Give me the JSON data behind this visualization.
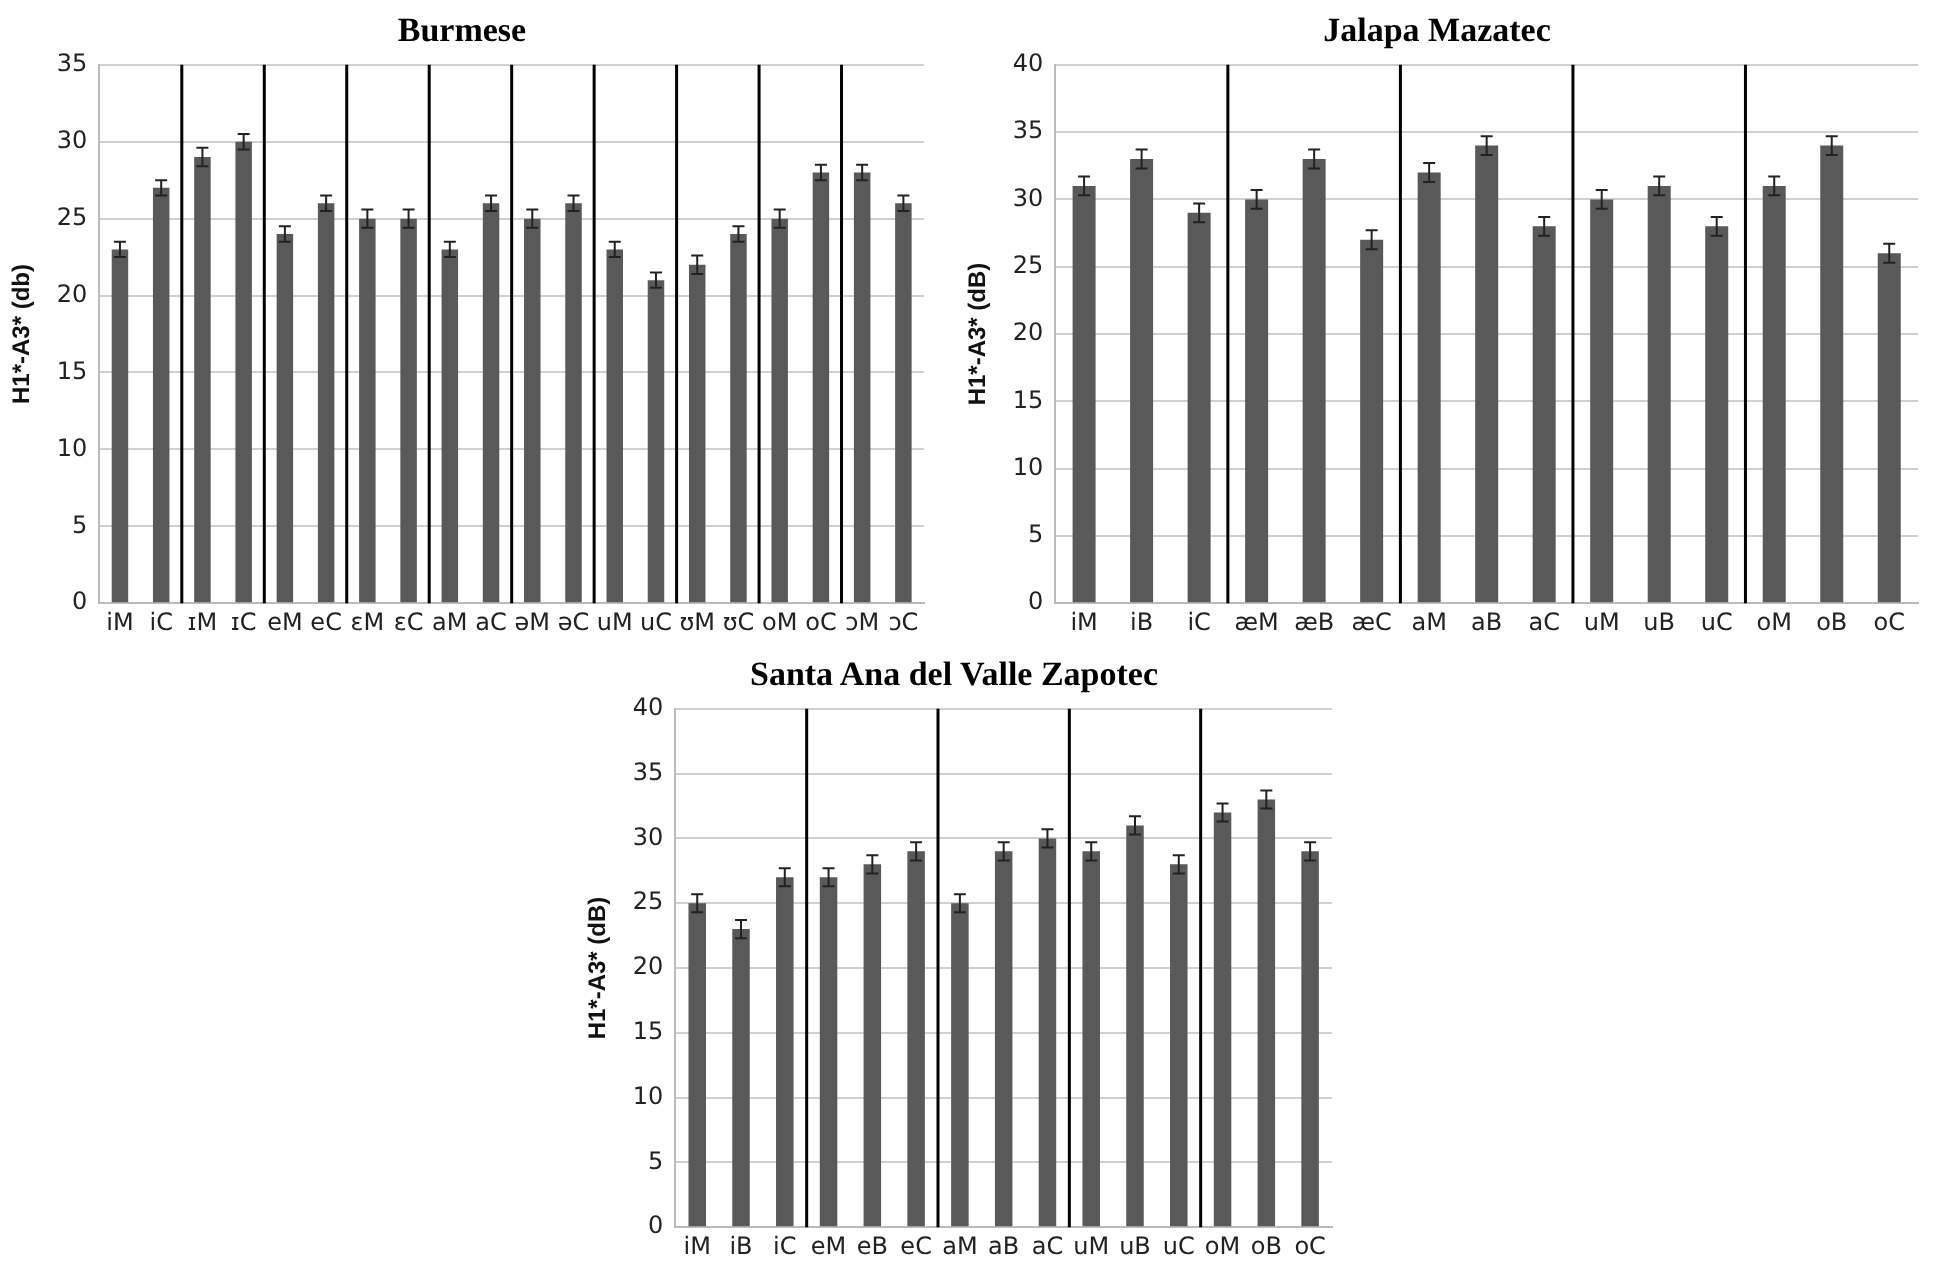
{
  "chart_data": [
    {
      "type": "bar",
      "title": "Burmese",
      "ylabel": "H1*-A3* (db)",
      "categories": [
        "iM",
        "iC",
        "ɪM",
        "ɪC",
        "eM",
        "eC",
        "ɛM",
        "ɛC",
        "aM",
        "aC",
        "əM",
        "əC",
        "uM",
        "uC",
        "ʊM",
        "ʊC",
        "oM",
        "oC",
        "ɔM",
        "ɔC"
      ],
      "series": [
        {
          "color": "#595959",
          "values": [
            23,
            27,
            29,
            30,
            24,
            26,
            25,
            25,
            23,
            26,
            25,
            26,
            23,
            21,
            22,
            24,
            25,
            28,
            28,
            26
          ],
          "errors": [
            0.5,
            0.5,
            0.6,
            0.5,
            0.5,
            0.5,
            0.6,
            0.6,
            0.5,
            0.5,
            0.6,
            0.5,
            0.5,
            0.5,
            0.6,
            0.5,
            0.6,
            0.5,
            0.5,
            0.5
          ]
        }
      ],
      "ylim": [
        0,
        35
      ],
      "yticks": [
        0,
        5,
        10,
        15,
        20,
        25,
        30,
        35
      ],
      "grid": "y",
      "legend": false
    },
    {
      "type": "bar",
      "title": "Jalapa Mazatec",
      "ylabel": "H1*-A3* (dB)",
      "categories": [
        "iM",
        "iB",
        "iC",
        "æM",
        "æB",
        "æC",
        "aM",
        "aB",
        "aC",
        "uM",
        "uB",
        "uC",
        "oM",
        "oB",
        "oC"
      ],
      "series": [
        {
          "color": "#595959",
          "values": [
            31,
            33,
            29,
            30,
            33,
            27,
            32,
            34,
            28,
            30,
            31,
            28,
            31,
            34,
            26
          ],
          "errors": [
            0.7,
            0.7,
            0.7,
            0.7,
            0.7,
            0.7,
            0.7,
            0.7,
            0.7,
            0.7,
            0.7,
            0.7,
            0.7,
            0.7,
            0.7
          ]
        }
      ],
      "ylim": [
        0,
        40
      ],
      "yticks": [
        0,
        5,
        10,
        15,
        20,
        25,
        30,
        35,
        40
      ],
      "grid": "y",
      "legend": false
    },
    {
      "type": "bar",
      "title": "Santa Ana del Valle Zapotec",
      "ylabel": "H1*-A3* (dB)",
      "categories": [
        "iM",
        "iB",
        "iC",
        "eM",
        "eB",
        "eC",
        "aM",
        "aB",
        "aC",
        "uM",
        "uB",
        "uC",
        "oM",
        "oB",
        "oC"
      ],
      "series": [
        {
          "color": "#595959",
          "values": [
            25,
            23,
            27,
            27,
            28,
            29,
            25,
            29,
            30,
            29,
            31,
            28,
            32,
            33,
            29
          ],
          "errors": [
            0.7,
            0.7,
            0.7,
            0.7,
            0.7,
            0.7,
            0.7,
            0.7,
            0.7,
            0.7,
            0.7,
            0.7,
            0.7,
            0.7,
            0.7
          ]
        }
      ],
      "ylim": [
        0,
        40
      ],
      "yticks": [
        0,
        5,
        10,
        15,
        20,
        25,
        30,
        35,
        40
      ],
      "grid": "y",
      "legend": false
    }
  ]
}
